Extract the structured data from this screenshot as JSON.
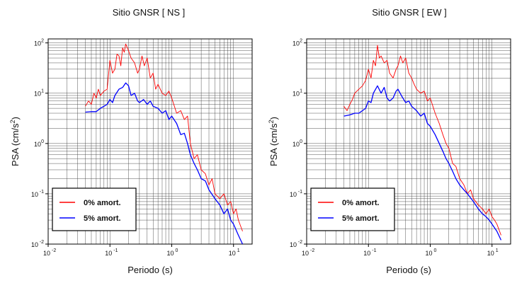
{
  "colors": {
    "undamped": "#ff0000",
    "damped": "#0000ff",
    "grid": "#000000"
  },
  "chart_data": [
    {
      "type": "line",
      "title": "Sitio GNSR [ NS ]",
      "xlabel": "Periodo (s)",
      "ylabel": "PSA (cm/s",
      "ylabel_sup": "2",
      "ylabel_close": ")",
      "xscale": "log",
      "yscale": "log",
      "xlim": [
        0.01,
        20
      ],
      "ylim": [
        0.01,
        120
      ],
      "grid": true,
      "legend_position": "bottom-left",
      "x_ticks": [
        {
          "base": "10",
          "exp": "-2"
        },
        {
          "base": "10",
          "exp": "-1"
        },
        {
          "base": "10",
          "exp": "0"
        },
        {
          "base": "10",
          "exp": "1"
        }
      ],
      "y_ticks": [
        {
          "base": "10",
          "exp": "-2"
        },
        {
          "base": "10",
          "exp": "-1"
        },
        {
          "base": "10",
          "exp": "0"
        },
        {
          "base": "10",
          "exp": "1"
        },
        {
          "base": "10",
          "exp": "2"
        }
      ],
      "series": [
        {
          "name": "0% amort.",
          "color": "#ff0000",
          "x": [
            0.04,
            0.045,
            0.05,
            0.055,
            0.06,
            0.065,
            0.07,
            0.08,
            0.09,
            0.1,
            0.11,
            0.12,
            0.13,
            0.14,
            0.15,
            0.16,
            0.17,
            0.18,
            0.2,
            0.22,
            0.25,
            0.28,
            0.3,
            0.33,
            0.36,
            0.4,
            0.45,
            0.5,
            0.55,
            0.6,
            0.7,
            0.8,
            0.9,
            1.0,
            1.2,
            1.4,
            1.6,
            1.8,
            2.0,
            2.3,
            2.6,
            3.0,
            3.5,
            4.0,
            4.5,
            5.0,
            6.0,
            7.0,
            8.0,
            9.0,
            10.0,
            11.0,
            12.0,
            14.0
          ],
          "y": [
            5.5,
            7.0,
            6.0,
            10.0,
            8.0,
            12.0,
            9.0,
            11.0,
            12.0,
            45.0,
            25.0,
            30.0,
            60.0,
            55.0,
            35.0,
            80.0,
            65.0,
            95.0,
            70.0,
            50.0,
            40.0,
            25.0,
            30.0,
            55.0,
            35.0,
            50.0,
            20.0,
            25.0,
            12.0,
            15.0,
            10.0,
            9.0,
            11.0,
            8.0,
            4.0,
            4.5,
            3.0,
            3.5,
            1.0,
            0.5,
            0.6,
            0.3,
            0.25,
            0.15,
            0.2,
            0.1,
            0.08,
            0.1,
            0.06,
            0.07,
            0.04,
            0.05,
            0.03,
            0.018
          ]
        },
        {
          "name": "5% amort.",
          "color": "#0000ff",
          "x": [
            0.04,
            0.05,
            0.06,
            0.07,
            0.08,
            0.09,
            0.1,
            0.11,
            0.12,
            0.14,
            0.16,
            0.18,
            0.2,
            0.22,
            0.25,
            0.28,
            0.3,
            0.35,
            0.4,
            0.45,
            0.5,
            0.6,
            0.7,
            0.8,
            0.9,
            1.0,
            1.2,
            1.4,
            1.6,
            1.8,
            2.0,
            2.3,
            2.6,
            3.0,
            3.5,
            4.0,
            5.0,
            6.0,
            7.0,
            8.0,
            9.0,
            10.0,
            12.0,
            14.0
          ],
          "y": [
            4.2,
            4.3,
            4.3,
            5.0,
            5.5,
            6.0,
            7.5,
            6.5,
            9.0,
            12.0,
            13.0,
            16.0,
            14.0,
            9.0,
            10.0,
            7.0,
            6.5,
            7.5,
            6.0,
            7.0,
            5.5,
            5.0,
            4.0,
            4.5,
            3.0,
            3.5,
            2.5,
            1.5,
            1.6,
            1.0,
            0.6,
            0.4,
            0.3,
            0.2,
            0.18,
            0.12,
            0.08,
            0.06,
            0.04,
            0.05,
            0.03,
            0.025,
            0.015,
            0.01
          ]
        }
      ]
    },
    {
      "type": "line",
      "title": "Sitio GNSR [ EW ]",
      "xlabel": "Periodo (s)",
      "ylabel": "PSA (cm/s",
      "ylabel_sup": "2",
      "ylabel_close": ")",
      "xscale": "log",
      "yscale": "log",
      "xlim": [
        0.01,
        20
      ],
      "ylim": [
        0.01,
        120
      ],
      "grid": true,
      "legend_position": "bottom-left",
      "x_ticks": [
        {
          "base": "10",
          "exp": "-2"
        },
        {
          "base": "10",
          "exp": "-1"
        },
        {
          "base": "10",
          "exp": "0"
        },
        {
          "base": "10",
          "exp": "1"
        }
      ],
      "y_ticks": [
        {
          "base": "10",
          "exp": "-2"
        },
        {
          "base": "10",
          "exp": "-1"
        },
        {
          "base": "10",
          "exp": "0"
        },
        {
          "base": "10",
          "exp": "1"
        },
        {
          "base": "10",
          "exp": "2"
        }
      ],
      "series": [
        {
          "name": "0% amort.",
          "color": "#ff0000",
          "x": [
            0.04,
            0.045,
            0.05,
            0.055,
            0.06,
            0.07,
            0.08,
            0.09,
            0.1,
            0.11,
            0.12,
            0.13,
            0.14,
            0.15,
            0.16,
            0.18,
            0.2,
            0.22,
            0.25,
            0.28,
            0.3,
            0.33,
            0.36,
            0.4,
            0.45,
            0.5,
            0.55,
            0.6,
            0.7,
            0.8,
            0.9,
            1.0,
            1.2,
            1.4,
            1.6,
            1.8,
            2.0,
            2.3,
            2.6,
            3.0,
            3.5,
            4.0,
            4.5,
            5.0,
            6.0,
            7.0,
            8.0,
            9.0,
            10.0,
            11.0,
            12.0,
            14.0
          ],
          "y": [
            5.5,
            4.5,
            6.0,
            7.5,
            10.0,
            12.0,
            14.0,
            18.0,
            30.0,
            20.0,
            45.0,
            35.0,
            90.0,
            50.0,
            55.0,
            40.0,
            45.0,
            25.0,
            20.0,
            30.0,
            35.0,
            55.0,
            40.0,
            50.0,
            25.0,
            20.0,
            15.0,
            12.0,
            10.0,
            11.0,
            7.0,
            8.0,
            4.0,
            2.5,
            1.5,
            1.0,
            0.8,
            0.4,
            0.35,
            0.2,
            0.15,
            0.1,
            0.12,
            0.08,
            0.06,
            0.05,
            0.04,
            0.05,
            0.035,
            0.03,
            0.025,
            0.015
          ]
        },
        {
          "name": "5% amort.",
          "color": "#0000ff",
          "x": [
            0.04,
            0.05,
            0.06,
            0.07,
            0.08,
            0.09,
            0.1,
            0.11,
            0.12,
            0.14,
            0.16,
            0.18,
            0.2,
            0.22,
            0.25,
            0.28,
            0.3,
            0.35,
            0.4,
            0.45,
            0.5,
            0.6,
            0.7,
            0.8,
            0.9,
            1.0,
            1.2,
            1.4,
            1.6,
            1.8,
            2.0,
            2.3,
            2.6,
            3.0,
            3.5,
            4.0,
            5.0,
            6.0,
            7.0,
            8.0,
            9.0,
            10.0,
            12.0,
            14.0
          ],
          "y": [
            3.5,
            3.7,
            4.0,
            4.0,
            4.5,
            5.0,
            7.0,
            6.5,
            10.0,
            14.0,
            10.0,
            13.0,
            8.0,
            7.0,
            8.0,
            11.0,
            12.0,
            8.5,
            6.5,
            7.0,
            5.5,
            4.5,
            3.5,
            4.0,
            2.5,
            2.2,
            1.5,
            1.0,
            0.7,
            0.5,
            0.4,
            0.28,
            0.2,
            0.15,
            0.12,
            0.1,
            0.07,
            0.05,
            0.04,
            0.035,
            0.03,
            0.025,
            0.018,
            0.012
          ]
        }
      ]
    }
  ]
}
